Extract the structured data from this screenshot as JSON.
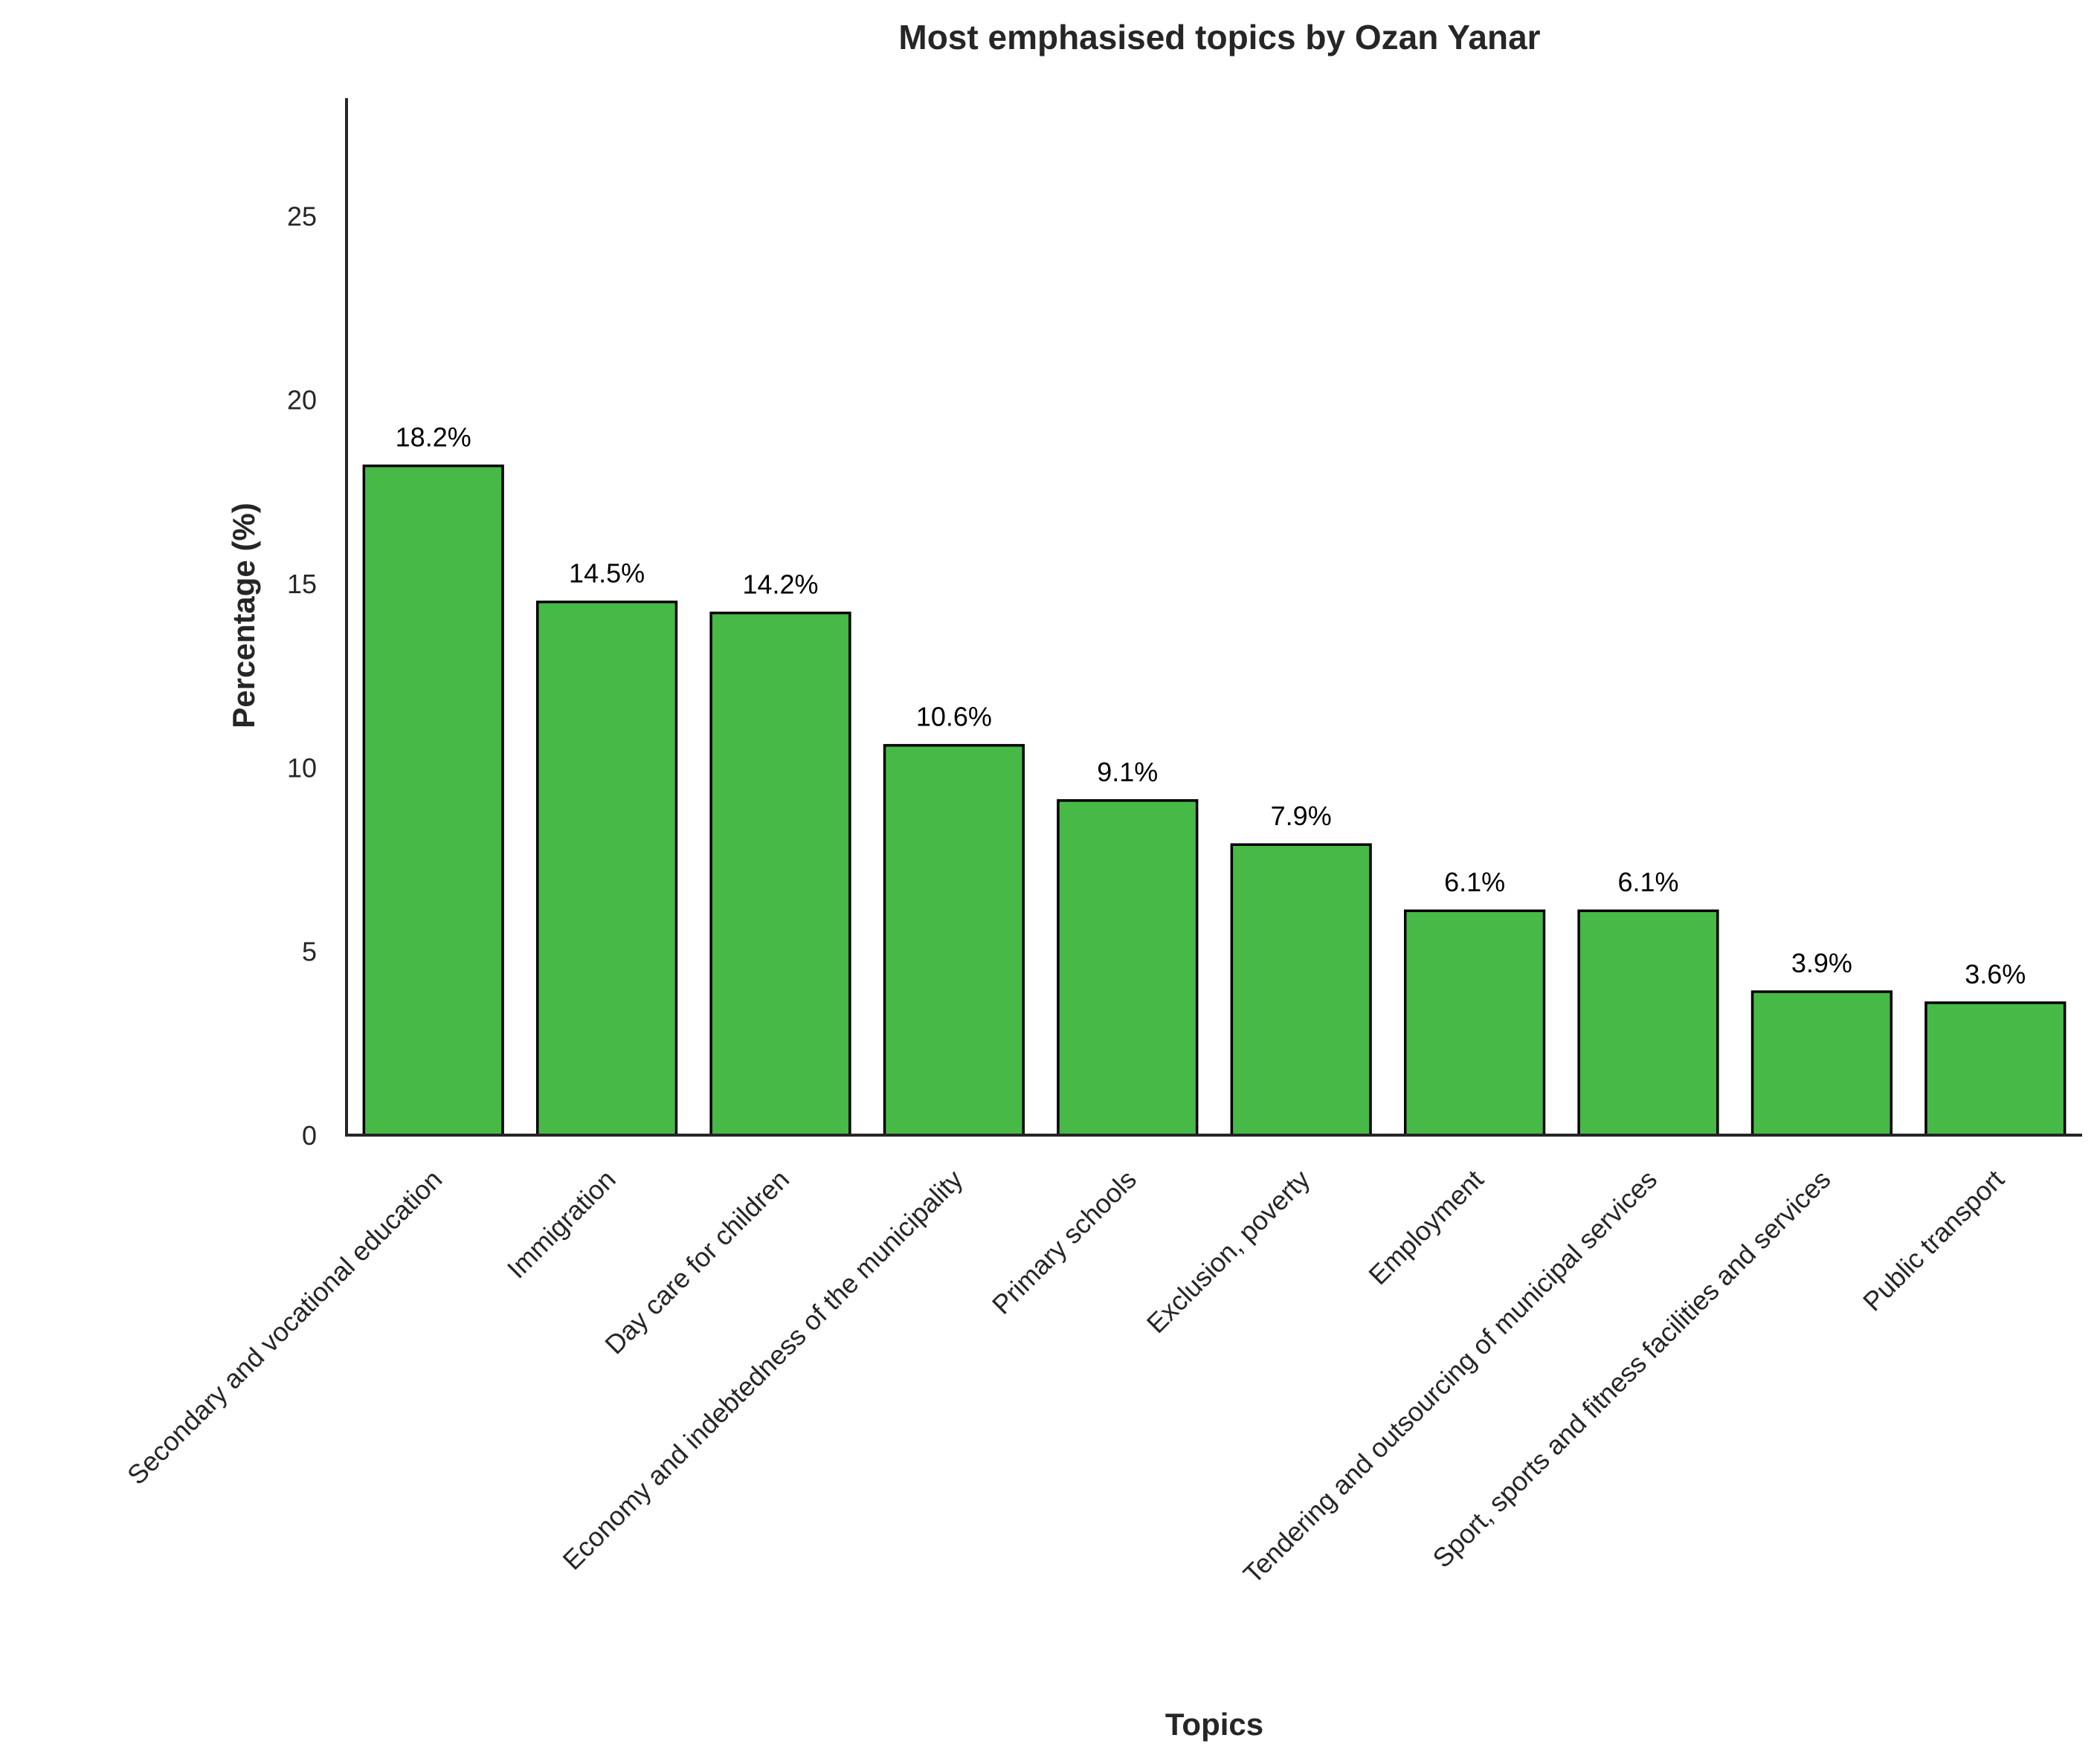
{
  "chart_data": {
    "type": "bar",
    "title": "Most emphasised topics by Ozan Yanar",
    "xlabel": "Topics",
    "ylabel": "Percentage (%)",
    "categories": [
      "Secondary and vocational education",
      "Immigration",
      "Day care for children",
      "Economy and indebtedness of the municipality",
      "Primary schools",
      "Exclusion, poverty",
      "Employment",
      "Tendering and outsourcing of municipal services",
      "Sport, sports and fitness facilities and services",
      "Public transport"
    ],
    "values": [
      18.2,
      14.5,
      14.2,
      10.6,
      9.1,
      7.9,
      6.1,
      6.1,
      3.9,
      3.6
    ],
    "value_labels": [
      "18.2%",
      "14.5%",
      "14.2%",
      "10.6%",
      "9.1%",
      "7.9%",
      "6.1%",
      "6.1%",
      "3.9%",
      "3.6%"
    ],
    "ylim": [
      0,
      28.2
    ],
    "yticks": [
      0,
      5,
      10,
      15,
      20,
      25
    ],
    "ytick_labels": [
      "0",
      "5",
      "10",
      "15",
      "20",
      "25"
    ],
    "grid": false,
    "legend": "none",
    "x_tick_rotation": 45,
    "colors": {
      "bar_fill": "#47b947",
      "bar_edge": "#000000",
      "axis": "#262626",
      "text": "#262626"
    }
  }
}
